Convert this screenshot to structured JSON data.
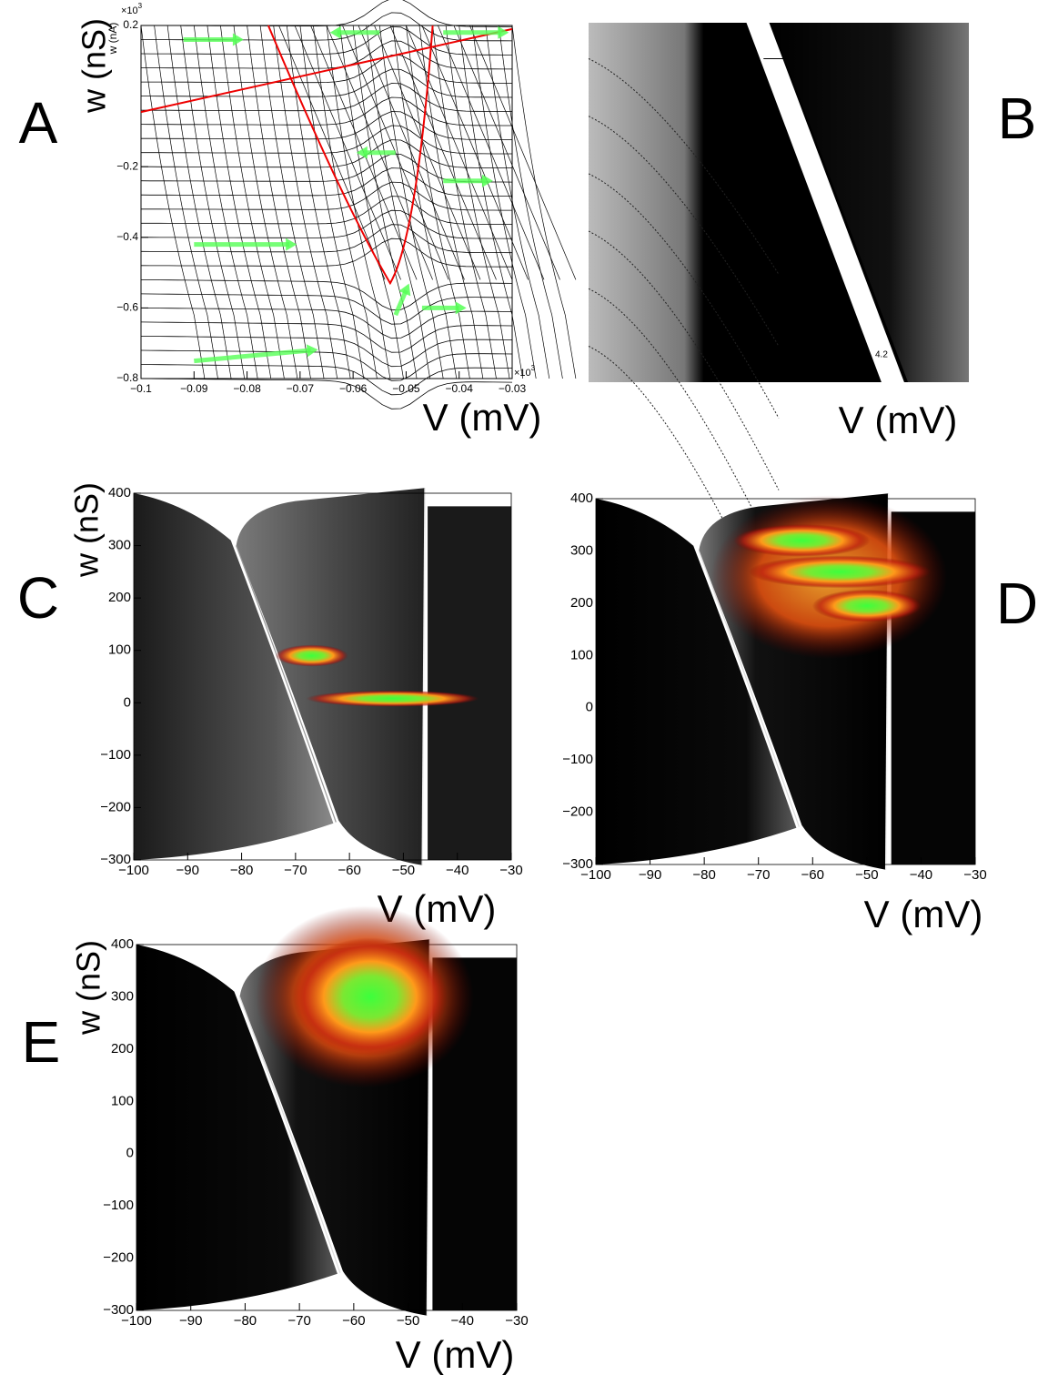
{
  "panels": [
    {
      "label": "A",
      "xlabel": "V (mV)",
      "ylabel": "w (nS)",
      "ylabel_overlay": "w (nA)",
      "y_multiplier": {
        "base": "×10",
        "exp": "3"
      },
      "x_multiplier": {
        "base": "×10",
        "exp": "3"
      },
      "xlim": [
        -0.1,
        -0.03
      ],
      "ylim": [
        -0.8,
        0.2
      ],
      "xticks": [
        {
          "value": -0.1,
          "label": "−0.1"
        },
        {
          "value": -0.09,
          "label": "−0.09"
        },
        {
          "value": -0.08,
          "label": "−0.08"
        },
        {
          "value": -0.07,
          "label": "−0.07"
        },
        {
          "value": -0.06,
          "label": "−0.06"
        },
        {
          "value": -0.05,
          "label": "−0.05"
        },
        {
          "value": -0.04,
          "label": "−0.04"
        },
        {
          "value": -0.03,
          "label": "−0.03"
        }
      ],
      "yticks": [
        0.2,
        {
          "value": -0.2,
          "label": "−0.2"
        },
        {
          "value": -0.4,
          "label": "−0.4"
        },
        {
          "value": -0.6,
          "label": "−0.6"
        },
        {
          "value": -0.8,
          "label": "−0.8"
        }
      ]
    },
    {
      "label": "B",
      "xlabel": "V (mV)",
      "inset_label": "4.2"
    },
    {
      "label": "C",
      "xlabel": "V (mV)",
      "ylabel": "w (nS)",
      "xlim": [
        -100,
        -30
      ],
      "ylim": [
        -300,
        400
      ],
      "xticks": [
        {
          "value": -100,
          "label": "−100"
        },
        {
          "value": -90,
          "label": "−90"
        },
        {
          "value": -80,
          "label": "−80"
        },
        {
          "value": -70,
          "label": "−70"
        },
        {
          "value": -60,
          "label": "−60"
        },
        {
          "value": -50,
          "label": "−50"
        },
        {
          "value": -40,
          "label": "−40"
        },
        {
          "value": -30,
          "label": "−30"
        }
      ],
      "yticks": [
        {
          "value": -300,
          "label": "−300"
        },
        {
          "value": -200,
          "label": "−200"
        },
        {
          "value": -100,
          "label": "−100"
        },
        0,
        100,
        200,
        300,
        400
      ]
    },
    {
      "label": "D",
      "xlabel": "V (mV)",
      "xlim": [
        -100,
        -30
      ],
      "ylim": [
        -300,
        400
      ],
      "xticks": [
        {
          "value": -100,
          "label": "−100"
        },
        {
          "value": -90,
          "label": "−90"
        },
        {
          "value": -80,
          "label": "−80"
        },
        {
          "value": -70,
          "label": "−70"
        },
        {
          "value": -60,
          "label": "−60"
        },
        {
          "value": -50,
          "label": "−50"
        },
        {
          "value": -40,
          "label": "−40"
        },
        {
          "value": -30,
          "label": "−30"
        }
      ],
      "yticks": [
        {
          "value": -300,
          "label": "−300"
        },
        {
          "value": -200,
          "label": "−200"
        },
        {
          "value": -100,
          "label": "−100"
        },
        0,
        100,
        200,
        300,
        400
      ]
    },
    {
      "label": "E",
      "xlabel": "V (mV)",
      "ylabel": "w (nS)",
      "xlim": [
        -100,
        -30
      ],
      "ylim": [
        -300,
        400
      ],
      "xticks": [
        {
          "value": -100,
          "label": "−100"
        },
        {
          "value": -90,
          "label": "−90"
        },
        {
          "value": -80,
          "label": "−80"
        },
        {
          "value": -70,
          "label": "−70"
        },
        {
          "value": -60,
          "label": "−60"
        },
        {
          "value": -50,
          "label": "−50"
        },
        {
          "value": -40,
          "label": "−40"
        },
        {
          "value": -30,
          "label": "−30"
        }
      ],
      "yticks": [
        {
          "value": -300,
          "label": "−300"
        },
        {
          "value": -200,
          "label": "−200"
        },
        {
          "value": -100,
          "label": "−100"
        },
        0,
        100,
        200,
        300,
        400
      ]
    }
  ]
}
